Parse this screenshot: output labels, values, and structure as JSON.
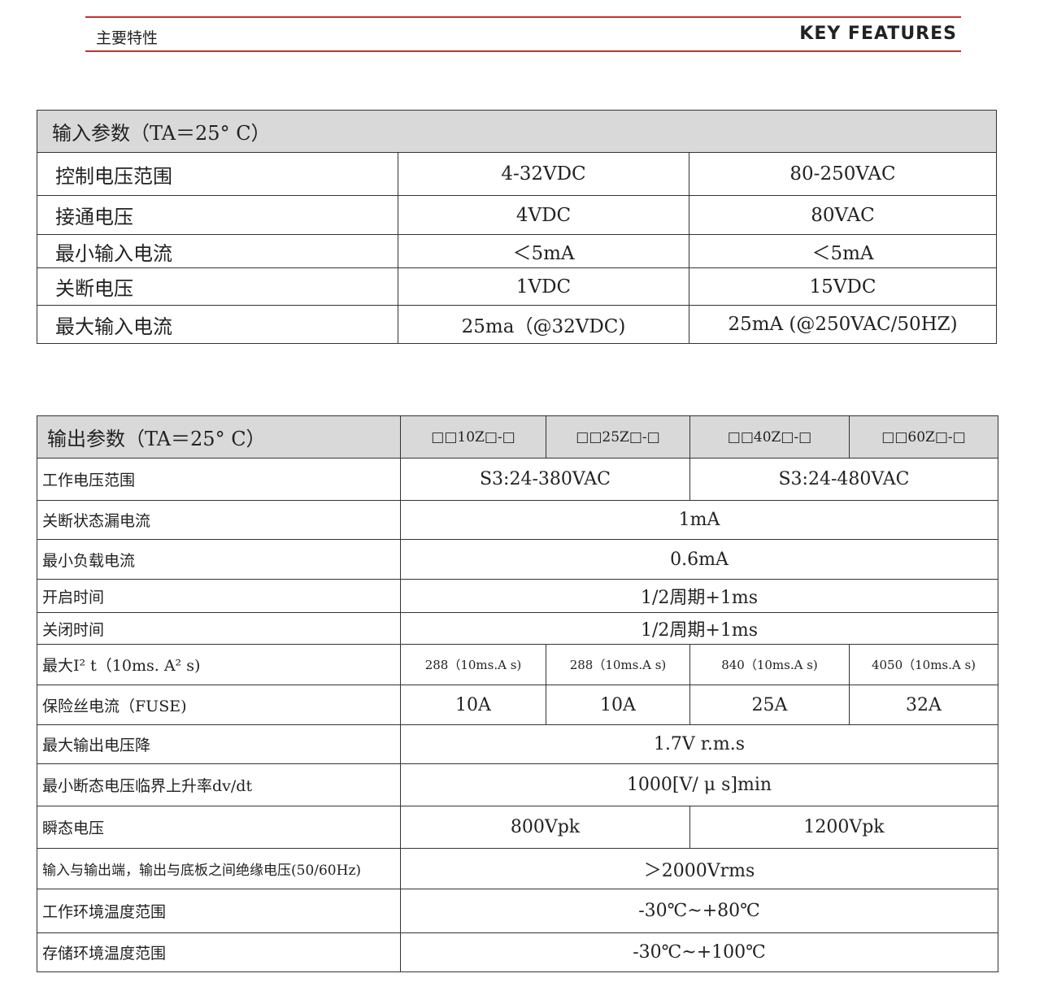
{
  "header": {
    "title_cn": "主要特性",
    "title_en": "KEY FEATURES"
  },
  "input_table": {
    "title": "输入参数（TA＝25° C）",
    "rows": [
      {
        "label": "控制电压范围",
        "dc": "4-32VDC",
        "ac": "80-250VAC"
      },
      {
        "label": "接通电压",
        "dc": "4VDC",
        "ac": "80VAC"
      },
      {
        "label": "最小输入电流",
        "dc": "＜5mA",
        "ac": "＜5mA"
      },
      {
        "label": "关断电压",
        "dc": "1VDC",
        "ac": "15VDC"
      },
      {
        "label": "最大输入电流",
        "dc": "25ma（@32VDC)",
        "ac": "25mA (@250VAC/50HZ)"
      }
    ]
  },
  "output_table": {
    "title": "输出参数（TA＝25° C）",
    "models": [
      "□□10Z□-□",
      "□□25Z□-□",
      "□□40Z□-□",
      "□□60Z□-□"
    ],
    "rows": {
      "voltage_range": {
        "label": "工作电压范围",
        "v1": "S3:24-380VAC",
        "v2": "S3:24-480VAC"
      },
      "leakage": {
        "label": "关断状态漏电流",
        "value": "1mA"
      },
      "min_load": {
        "label": "最小负载电流",
        "value": "0.6mA"
      },
      "turn_on": {
        "label": "开启时间",
        "value": "1/2周期+1ms"
      },
      "turn_off": {
        "label": "关闭时间",
        "value": "1/2周期+1ms"
      },
      "i2t": {
        "label": "最大I² t（10ms. A² s)",
        "values": [
          "288（10ms.A s)",
          "288（10ms.A s)",
          "840（10ms.A s)",
          "4050（10ms.A s)"
        ]
      },
      "fuse": {
        "label": "保险丝电流（FUSE)",
        "values": [
          "10A",
          "10A",
          "25A",
          "32A"
        ]
      },
      "drop": {
        "label": "最大输出电压降",
        "value": "1.7V r.m.s"
      },
      "dvdt": {
        "label": "最小断态电压临界上升率dv/dt",
        "value": "1000[V/ μ s]min"
      },
      "transient": {
        "label": "瞬态电压",
        "v1": "800Vpk",
        "v2": "1200Vpk"
      },
      "isolation": {
        "label": "输入与输出端，输出与底板之间绝缘电压(50/60Hz)",
        "value": "＞2000Vrms"
      },
      "op_temp": {
        "label": "工作环境温度范围",
        "value": "-30℃~+80℃"
      },
      "st_temp": {
        "label": "存储环境温度范围",
        "value": "-30℃~+100℃"
      }
    }
  }
}
